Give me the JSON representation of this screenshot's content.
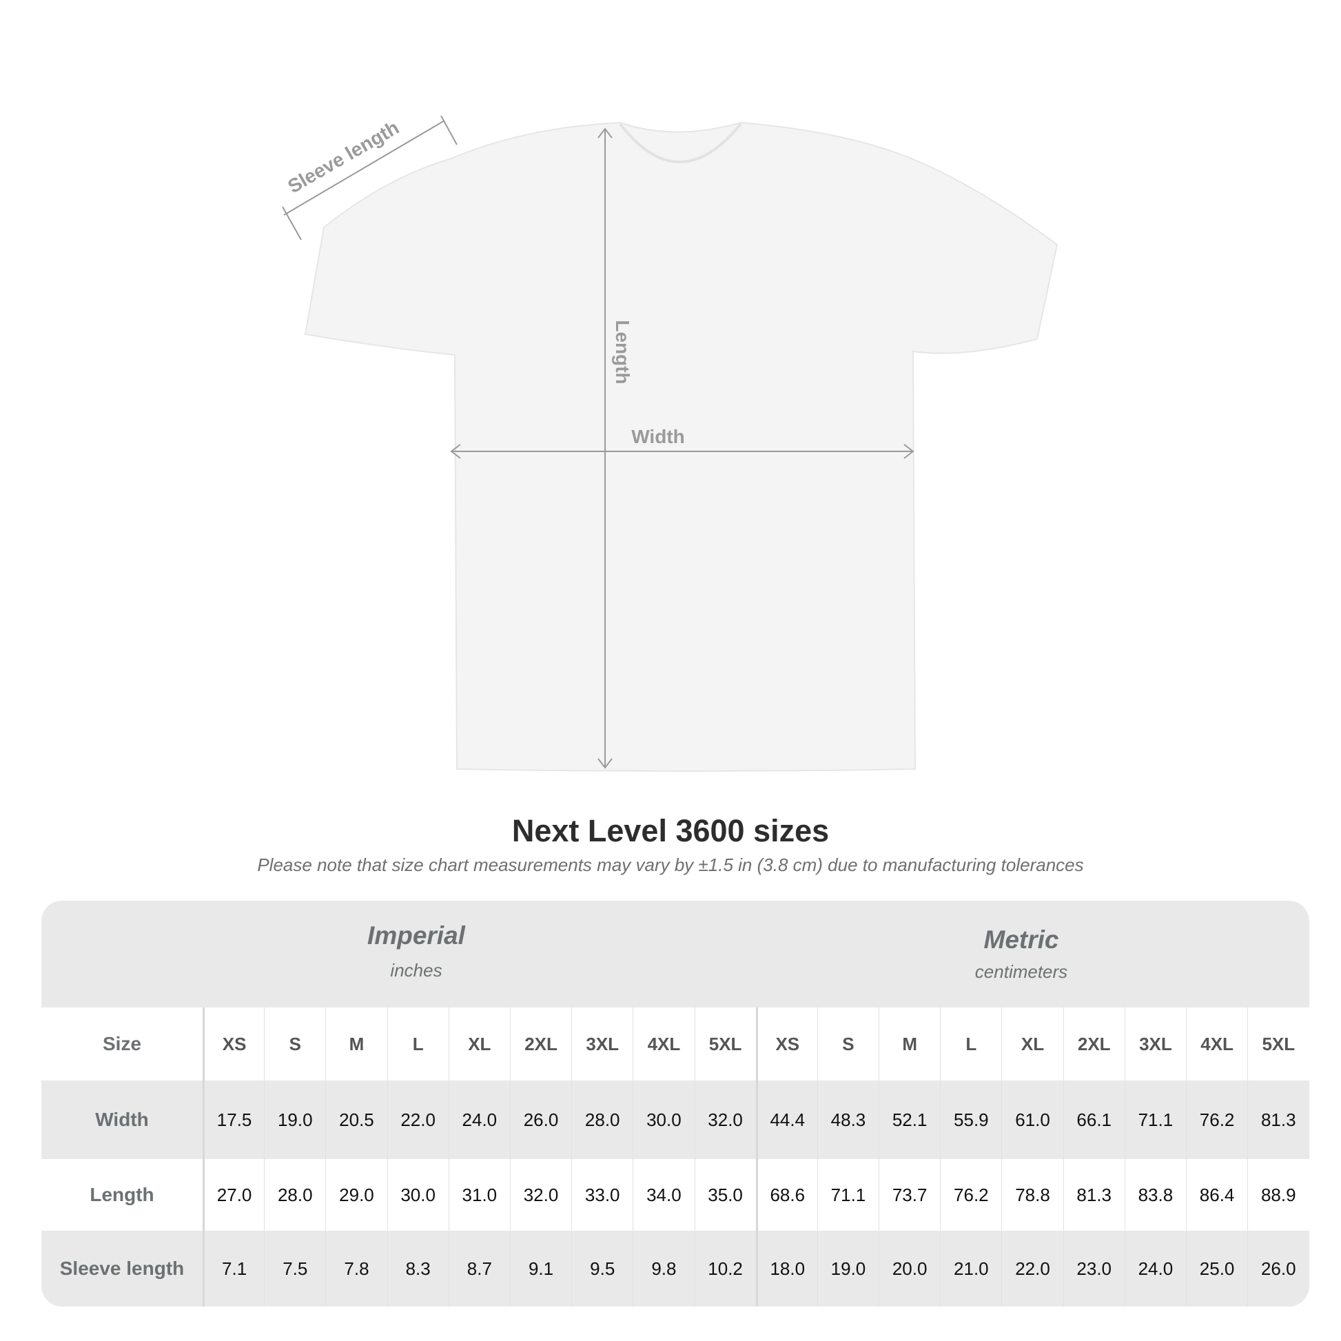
{
  "diagram": {
    "sleeve_label": "Sleeve length",
    "length_label": "Length",
    "width_label": "Width"
  },
  "title": "Next Level 3600 sizes",
  "subtitle": "Please note that size chart measurements may vary by ±1.5 in (3.8 cm) due to manufacturing tolerances",
  "table": {
    "imperial": {
      "name": "Imperial",
      "unit": "inches"
    },
    "metric": {
      "name": "Metric",
      "unit": "centimeters"
    },
    "size_label": "Size",
    "sizes": [
      "XS",
      "S",
      "M",
      "L",
      "XL",
      "2XL",
      "3XL",
      "4XL",
      "5XL",
      "XS",
      "S",
      "M",
      "L",
      "XL",
      "2XL",
      "3XL",
      "4XL",
      "5XL"
    ],
    "rows": [
      {
        "label": "Width",
        "values": [
          "17.5",
          "19.0",
          "20.5",
          "22.0",
          "24.0",
          "26.0",
          "28.0",
          "30.0",
          "32.0",
          "44.4",
          "48.3",
          "52.1",
          "55.9",
          "61.0",
          "66.1",
          "71.1",
          "76.2",
          "81.3"
        ]
      },
      {
        "label": "Length",
        "values": [
          "27.0",
          "28.0",
          "29.0",
          "30.0",
          "31.0",
          "32.0",
          "33.0",
          "34.0",
          "35.0",
          "68.6",
          "71.1",
          "73.7",
          "76.2",
          "78.8",
          "81.3",
          "83.8",
          "86.4",
          "88.9"
        ]
      },
      {
        "label": "Sleeve length",
        "values": [
          "7.1",
          "7.5",
          "7.8",
          "8.3",
          "8.7",
          "9.1",
          "9.5",
          "9.8",
          "10.2",
          "18.0",
          "19.0",
          "20.0",
          "21.0",
          "22.0",
          "23.0",
          "24.0",
          "25.0",
          "26.0"
        ]
      }
    ]
  },
  "colors": {
    "band": "#e9e9e9",
    "label": "#6b7172",
    "measure_line": "#9a9a9a"
  }
}
